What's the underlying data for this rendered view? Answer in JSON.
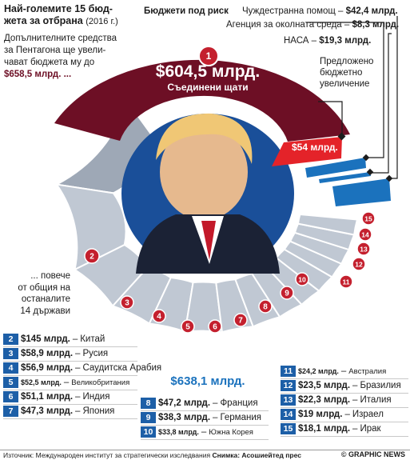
{
  "title": {
    "line1": "Най-големите 15 бюд-",
    "line2": "жета за отбрана",
    "year": "(2016 г.)"
  },
  "intro": {
    "line1": "Допълнителните средства",
    "line2": "за Пентагона ще увели-",
    "line3": "чават бюджета му до",
    "amount": "$658,5 млрд. ..."
  },
  "usa": {
    "rank": "1",
    "value": "$604,5 млрд.",
    "name": "Съединени щати",
    "increase": "$54 млрд."
  },
  "budgets_at_risk": {
    "heading": "Бюджети под риск",
    "aid_label": "Чуждестранна помощ –",
    "aid_value": "$42,4 млрд.",
    "env_label": "Агенция за околната среда –",
    "env_value": "$8,3 млрд.",
    "nasa_label": "НАСА –",
    "nasa_value": "$19,3 млрд."
  },
  "proposed": {
    "line1": "Предложено",
    "line2": "бюджетно",
    "line3": "увеличение"
  },
  "more": {
    "line1": "... повече",
    "line2": "от общия на",
    "line3": "останалите",
    "line4": "14 държави"
  },
  "total": "$638,1 млрд.",
  "countries_left": [
    {
      "rank": "2",
      "value": "$145 млрд.",
      "sep": "–",
      "name": "Китай"
    },
    {
      "rank": "3",
      "value": "$58,9 млрд.",
      "sep": "–",
      "name": "Русия"
    },
    {
      "rank": "4",
      "value": "$56,9 млрд.",
      "sep": "–",
      "name": "Саудитска Арабия"
    },
    {
      "rank": "5",
      "value": "$52,5 млрд.",
      "sep": "–",
      "name": "Великобритания"
    },
    {
      "rank": "6",
      "value": "$51,1 млрд.",
      "sep": "–",
      "name": "Индия"
    },
    {
      "rank": "7",
      "value": "$47,3 млрд.",
      "sep": "–",
      "name": "Япония"
    }
  ],
  "countries_mid": [
    {
      "rank": "8",
      "value": "$47,2 млрд.",
      "sep": "–",
      "name": "Франция"
    },
    {
      "rank": "9",
      "value": "$38,3 млрд.",
      "sep": "–",
      "name": "Германия"
    },
    {
      "rank": "10",
      "value": "$33,8 млрд.",
      "sep": "–",
      "name": "Южна Корея"
    }
  ],
  "countries_right": [
    {
      "rank": "11",
      "value": "$24,2 млрд.",
      "sep": "–",
      "name": "Австралия"
    },
    {
      "rank": "12",
      "value": "$23,5 млрд.",
      "sep": "–",
      "name": "Бразилия"
    },
    {
      "rank": "13",
      "value": "$22,3 млрд.",
      "sep": "–",
      "name": "Италия"
    },
    {
      "rank": "14",
      "value": "$19 млрд.",
      "sep": "–",
      "name": "Израел"
    },
    {
      "rank": "15",
      "value": "$18,1 млрд.",
      "sep": "–",
      "name": "Ирак"
    }
  ],
  "footer": {
    "source": "Източник: Международен институт за стратегически изследвания",
    "photo": "Снимка: Асошиейтед прес",
    "credit": "© GRAPHIC NEWS"
  },
  "colors": {
    "usa": "#6d0f25",
    "increase": "#e42329",
    "risk": "#1b72bd",
    "others": "#b7c1cf",
    "badge_red": "#c4202e",
    "num_blue": "#1d5fa7"
  }
}
